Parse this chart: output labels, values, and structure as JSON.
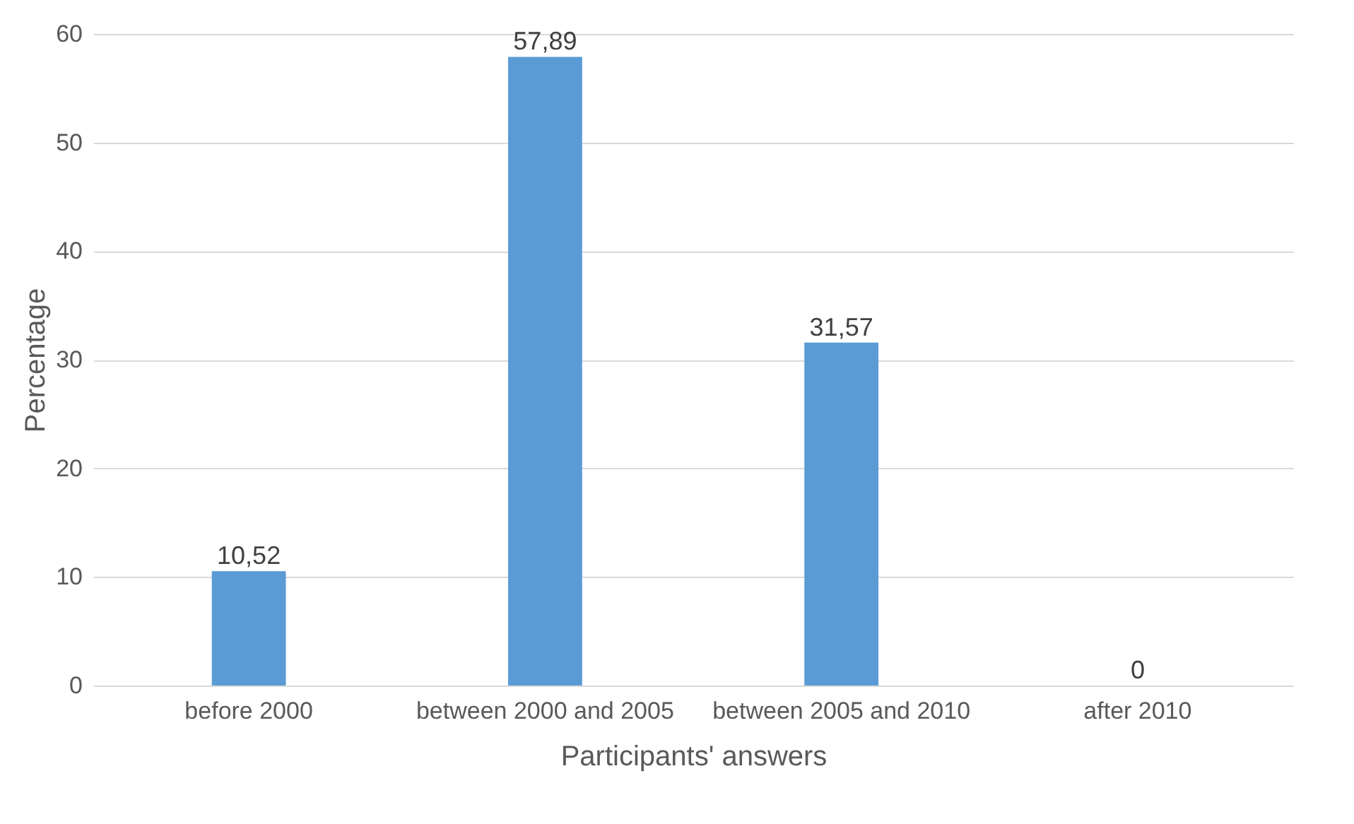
{
  "chart_data": {
    "type": "bar",
    "xlabel": "Participants' answers",
    "ylabel": "Percentage",
    "categories": [
      "before 2000",
      "between 2000 and 2005",
      "between 2005 and 2010",
      "after 2010"
    ],
    "values": [
      10.52,
      57.89,
      31.57,
      0
    ],
    "value_labels": [
      "10,52",
      "57,89",
      "31,57",
      "0"
    ],
    "color": "#5b9bd5",
    "ylim": [
      0,
      60
    ],
    "yticks": [
      0,
      10,
      20,
      30,
      40,
      50,
      60
    ],
    "grid": "y"
  }
}
